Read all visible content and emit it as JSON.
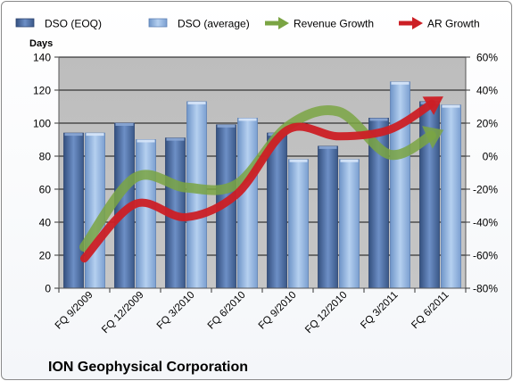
{
  "chart_data": {
    "type": "bar",
    "title": "ION Geophysical Corporation",
    "ylabel": "Days",
    "categories": [
      "FQ 9/2009",
      "FQ 12/2009",
      "FQ 3/2010",
      "FQ 6/2010",
      "FQ 9/2010",
      "FQ 12/2010",
      "FQ 3/2011",
      "FQ 6/2011"
    ],
    "series": [
      {
        "name": "DSO (EOQ)",
        "axis": "left",
        "type": "bar",
        "values": [
          94,
          100,
          91,
          99,
          94,
          86,
          103,
          113
        ]
      },
      {
        "name": "DSO (average)",
        "axis": "left",
        "type": "bar",
        "values": [
          94,
          90,
          113,
          103,
          78,
          78,
          125,
          111
        ]
      },
      {
        "name": "Revenue Growth",
        "axis": "right",
        "type": "line-arrow",
        "values": [
          -0.55,
          -0.13,
          -0.19,
          -0.17,
          0.18,
          0.27,
          0.01,
          0.15
        ]
      },
      {
        "name": "AR Growth",
        "axis": "right",
        "type": "line-arrow",
        "values": [
          -0.62,
          -0.29,
          -0.37,
          -0.23,
          0.16,
          0.12,
          0.16,
          0.35
        ]
      }
    ],
    "ylim": [
      0,
      140
    ],
    "y2lim": [
      -0.8,
      0.6
    ],
    "yticks": [
      "0",
      "20",
      "40",
      "60",
      "80",
      "100",
      "120",
      "140"
    ],
    "y2ticks": [
      "-80%",
      "-60%",
      "-40%",
      "-20%",
      "0%",
      "20%",
      "40%",
      "60%"
    ],
    "legend_position": "top",
    "grid": true,
    "colors": {
      "dso_eoq": "#4f6fa6",
      "dso_average": "#93b7e3",
      "revenue_growth": "#7aa443",
      "ar_growth": "#cc1f25",
      "plot_bg": "#bcbcbc",
      "gridline": "#111111"
    }
  }
}
